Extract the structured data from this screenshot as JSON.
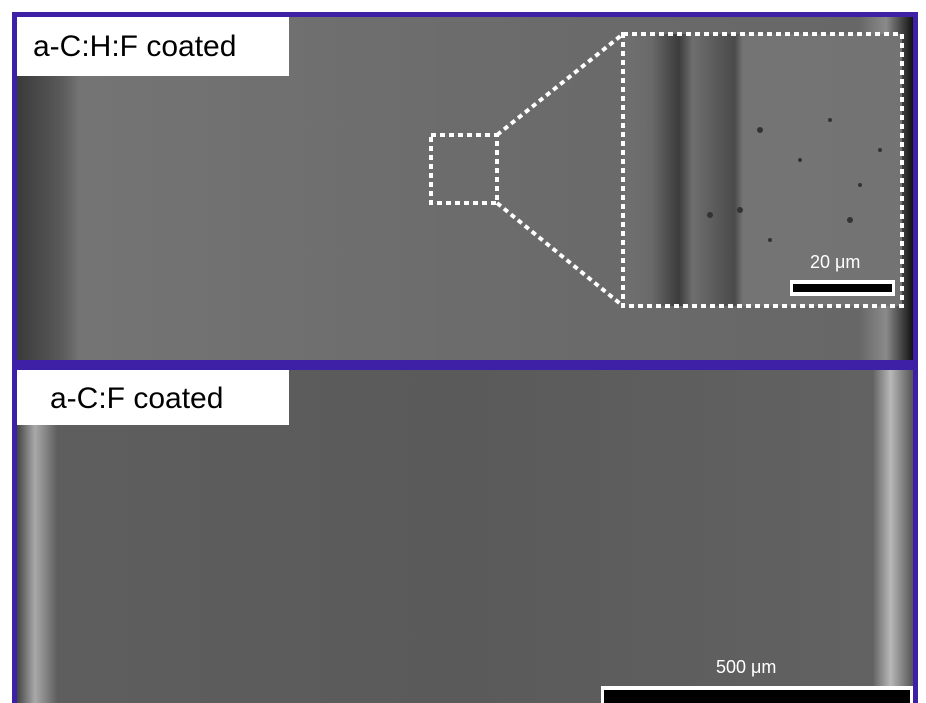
{
  "panels": [
    {
      "label": "a-C:H:F coated",
      "scale_bar": "20 μm"
    },
    {
      "label": "a-C:F coated",
      "scale_bar": "500 μm"
    }
  ]
}
